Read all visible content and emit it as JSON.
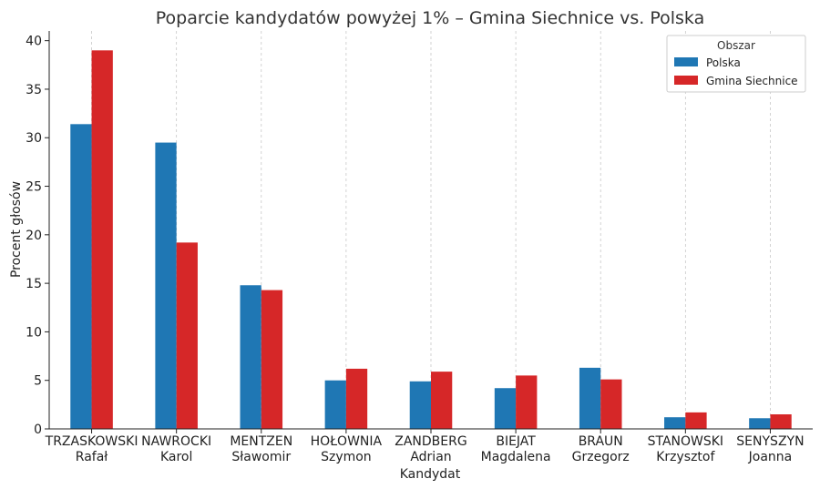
{
  "chart_data": {
    "type": "bar",
    "title": "Poparcie kandydatów powyżej 1% – Gmina Siechnice vs. Polska",
    "xlabel": "Kandydat",
    "ylabel": "Procent głosów",
    "ylim": [
      0,
      41
    ],
    "yticks": [
      0,
      5,
      10,
      15,
      20,
      25,
      30,
      35,
      40
    ],
    "grid": "vertical dashed",
    "legend": {
      "title": "Obszar",
      "placement": "top-right"
    },
    "categories": [
      [
        "TRZASKOWSKI",
        "Rafał"
      ],
      [
        "NAWROCKI",
        "Karol"
      ],
      [
        "MENTZEN",
        "Sławomir"
      ],
      [
        "HOŁOWNIA",
        "Szymon"
      ],
      [
        "ZANDBERG",
        "Adrian"
      ],
      [
        "BIEJAT",
        "Magdalena"
      ],
      [
        "BRAUN",
        "Grzegorz"
      ],
      [
        "STANOWSKI",
        "Krzysztof"
      ],
      [
        "SENYSZYN",
        "Joanna"
      ]
    ],
    "series": [
      {
        "name": "Polska",
        "color": "#1f77b4",
        "values": [
          31.4,
          29.5,
          14.8,
          5.0,
          4.9,
          4.2,
          6.3,
          1.2,
          1.1
        ]
      },
      {
        "name": "Gmina Siechnice",
        "color": "#d62728",
        "values": [
          39.0,
          19.2,
          14.3,
          6.2,
          5.9,
          5.5,
          5.1,
          1.7,
          1.5
        ]
      }
    ]
  }
}
